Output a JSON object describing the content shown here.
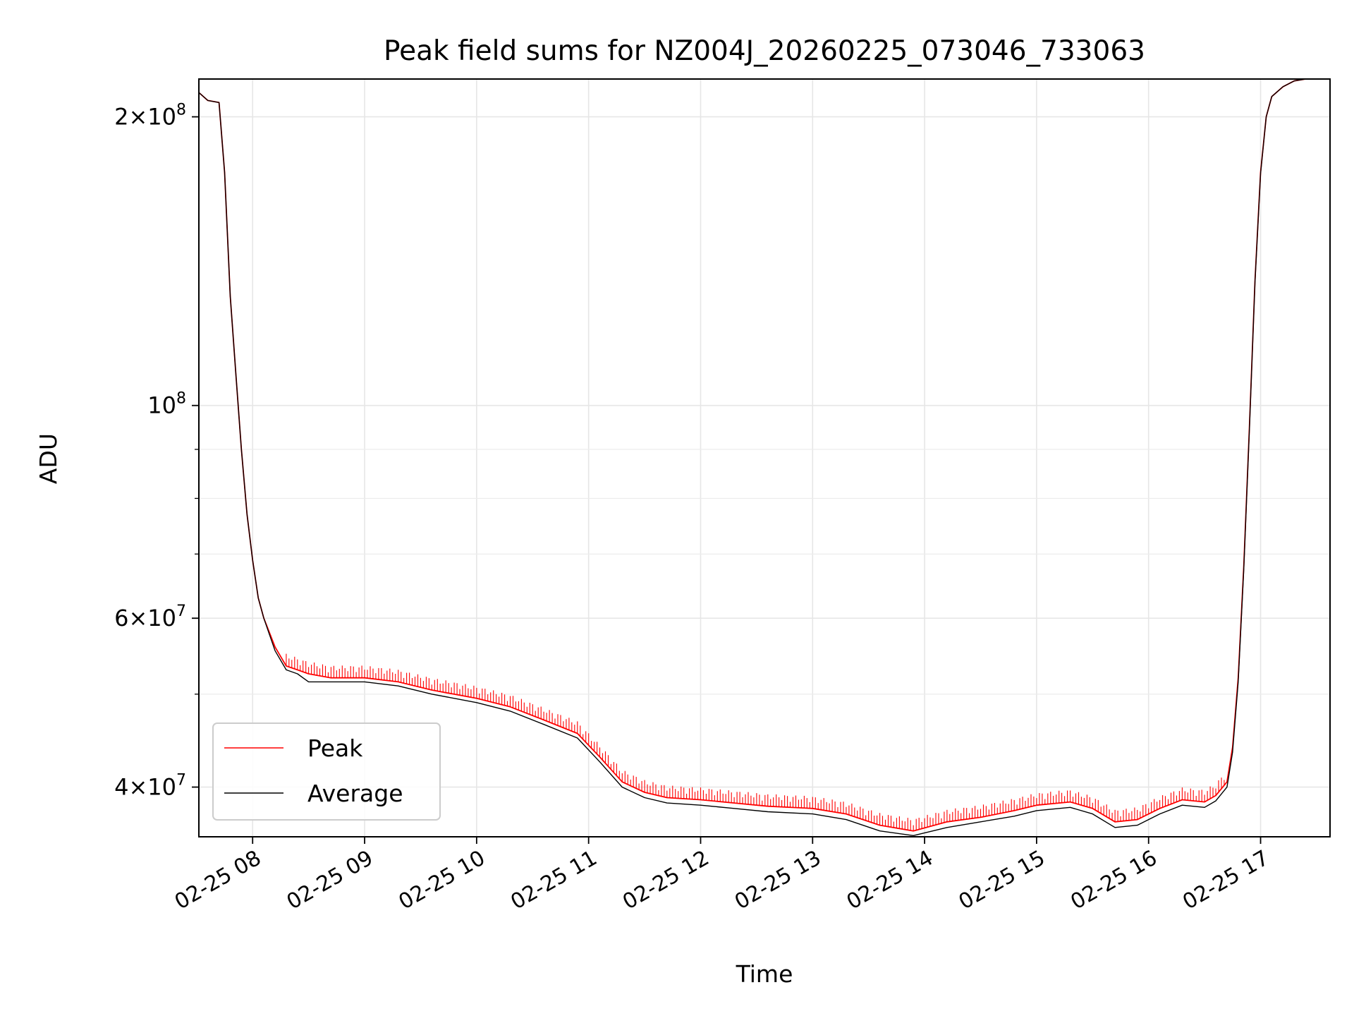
{
  "chart_data": {
    "type": "line",
    "title": "Peak field sums for NZ004J_20260225_073046_733063",
    "xlabel": "Time",
    "ylabel": "ADU",
    "yscale": "log",
    "xlim_hours": [
      7.52,
      17.62
    ],
    "ylim": [
      35500000,
      219000000
    ],
    "grid": true,
    "legend_position": "lower-left",
    "x_ticks": [
      {
        "value": 8,
        "label": "02-25 08"
      },
      {
        "value": 9,
        "label": "02-25 09"
      },
      {
        "value": 10,
        "label": "02-25 10"
      },
      {
        "value": 11,
        "label": "02-25 11"
      },
      {
        "value": 12,
        "label": "02-25 12"
      },
      {
        "value": 13,
        "label": "02-25 13"
      },
      {
        "value": 14,
        "label": "02-25 14"
      },
      {
        "value": 15,
        "label": "02-25 15"
      },
      {
        "value": 16,
        "label": "02-25 16"
      },
      {
        "value": 17,
        "label": "02-25 17"
      }
    ],
    "y_major_ticks": [
      {
        "value": 40000000,
        "mant": "4",
        "exp": "7"
      },
      {
        "value": 60000000,
        "mant": "6",
        "exp": "7"
      },
      {
        "value": 100000000,
        "mant": "",
        "exp": "8"
      },
      {
        "value": 200000000,
        "mant": "2",
        "exp": "8"
      }
    ],
    "y_minor_ticks": [
      50000000,
      70000000,
      80000000,
      90000000
    ],
    "series": [
      {
        "name": "Peak",
        "color": "#ff0000",
        "spikes": true,
        "time_hours": [
          7.52,
          7.6,
          7.7,
          7.75,
          7.8,
          7.85,
          7.9,
          7.95,
          8.0,
          8.05,
          8.1,
          8.2,
          8.3,
          8.4,
          8.5,
          8.7,
          9.0,
          9.3,
          9.6,
          10.0,
          10.3,
          10.6,
          10.9,
          11.1,
          11.3,
          11.5,
          11.7,
          12.0,
          12.3,
          12.6,
          13.0,
          13.3,
          13.6,
          13.9,
          14.2,
          14.5,
          14.8,
          15.0,
          15.3,
          15.5,
          15.7,
          15.9,
          16.1,
          16.3,
          16.5,
          16.6,
          16.7,
          16.75,
          16.8,
          16.85,
          16.9,
          16.95,
          17.0,
          17.05,
          17.1,
          17.2,
          17.3,
          17.45,
          17.62
        ],
        "values": [
          212000000,
          208000000,
          207000000,
          175000000,
          130000000,
          108000000,
          90000000,
          77000000,
          69000000,
          63000000,
          60000000,
          56000000,
          53500000,
          53000000,
          52500000,
          52000000,
          52000000,
          51500000,
          50500000,
          49500000,
          48500000,
          47000000,
          45500000,
          43000000,
          40500000,
          39500000,
          39000000,
          38800000,
          38500000,
          38200000,
          38000000,
          37500000,
          36500000,
          36000000,
          36800000,
          37200000,
          37800000,
          38300000,
          38600000,
          38000000,
          36800000,
          37000000,
          38000000,
          38800000,
          38600000,
          39200000,
          40500000,
          44000000,
          52000000,
          68000000,
          95000000,
          135000000,
          175000000,
          200000000,
          210000000,
          215000000,
          218000000,
          219500000,
          220000000
        ]
      },
      {
        "name": "Average",
        "color": "#000000",
        "spikes": false,
        "time_hours": [
          7.52,
          7.6,
          7.7,
          7.75,
          7.8,
          7.85,
          7.9,
          7.95,
          8.0,
          8.05,
          8.1,
          8.2,
          8.3,
          8.4,
          8.5,
          8.7,
          9.0,
          9.3,
          9.6,
          10.0,
          10.3,
          10.6,
          10.9,
          11.1,
          11.3,
          11.5,
          11.7,
          12.0,
          12.3,
          12.6,
          13.0,
          13.3,
          13.6,
          13.9,
          14.2,
          14.5,
          14.8,
          15.0,
          15.3,
          15.5,
          15.7,
          15.9,
          16.1,
          16.3,
          16.5,
          16.6,
          16.7,
          16.75,
          16.8,
          16.85,
          16.9,
          16.95,
          17.0,
          17.05,
          17.1,
          17.2,
          17.3,
          17.45,
          17.62
        ],
        "values": [
          212000000,
          208000000,
          207000000,
          175000000,
          130000000,
          108000000,
          90000000,
          77000000,
          69000000,
          63000000,
          60000000,
          55500000,
          53000000,
          52500000,
          51500000,
          51500000,
          51500000,
          51000000,
          50000000,
          49000000,
          48000000,
          46500000,
          45000000,
          42500000,
          40000000,
          39000000,
          38500000,
          38300000,
          38000000,
          37700000,
          37500000,
          37000000,
          36000000,
          35600000,
          36300000,
          36800000,
          37300000,
          37800000,
          38100000,
          37500000,
          36300000,
          36500000,
          37500000,
          38300000,
          38100000,
          38700000,
          40000000,
          43500000,
          51500000,
          67500000,
          94500000,
          134500000,
          174500000,
          200000000,
          210000000,
          215000000,
          218000000,
          219500000,
          220000000
        ]
      }
    ]
  }
}
